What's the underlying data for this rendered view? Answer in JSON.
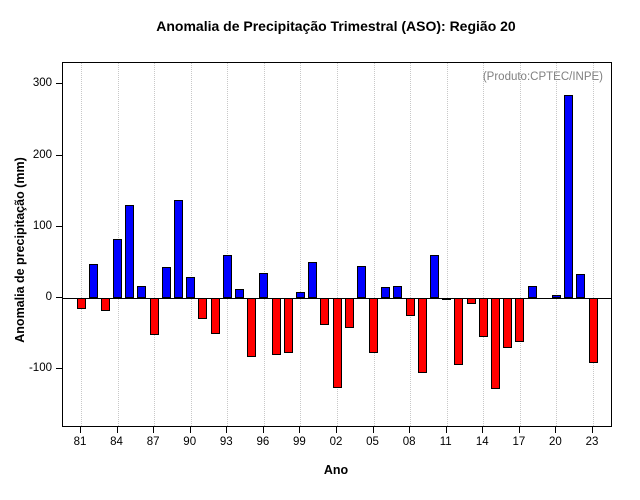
{
  "annotation": "(Produto:CPTEC/INPE)",
  "chart_data": {
    "type": "bar",
    "title": "Anomalia de Precipitação Trimestral (ASO): Região 20",
    "xlabel": "Ano",
    "ylabel": "Anomalia de precipitação (mm)",
    "ylim": [
      -180,
      330
    ],
    "y_ticks": [
      -100,
      0,
      100,
      200,
      300
    ],
    "x_ticks": [
      "81",
      "84",
      "87",
      "90",
      "93",
      "96",
      "99",
      "02",
      "05",
      "08",
      "11",
      "14",
      "17",
      "20",
      "23"
    ],
    "years": [
      "81",
      "82",
      "83",
      "84",
      "85",
      "86",
      "87",
      "88",
      "89",
      "90",
      "91",
      "92",
      "93",
      "94",
      "95",
      "96",
      "97",
      "98",
      "99",
      "00",
      "01",
      "02",
      "03",
      "04",
      "05",
      "06",
      "07",
      "08",
      "09",
      "10",
      "11",
      "12",
      "13",
      "14",
      "15",
      "16",
      "17",
      "18",
      "19",
      "20",
      "21",
      "22",
      "23"
    ],
    "values": [
      -15,
      47,
      -18,
      83,
      131,
      16,
      -52,
      44,
      138,
      29,
      -30,
      -51,
      60,
      12,
      -83,
      35,
      -80,
      -77,
      8,
      50,
      -38,
      -127,
      -42,
      45,
      -78,
      15,
      17,
      -25,
      -106,
      60,
      -3,
      -95,
      -8,
      -55,
      -128,
      -70,
      -62,
      16,
      0,
      4,
      285,
      33,
      -92
    ],
    "colors": {
      "positive": "#0000ff",
      "negative": "#ff0000",
      "grid": "#c8c8c8",
      "annotation": "#808080",
      "axis": "#000000"
    },
    "legend": "none",
    "grid": "vertical-dotted"
  }
}
